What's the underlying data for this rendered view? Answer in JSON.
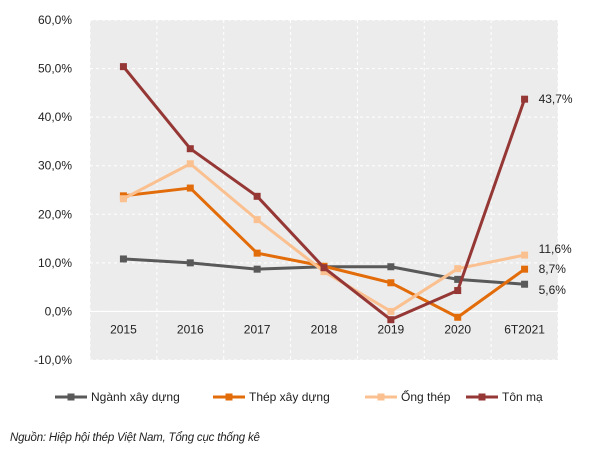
{
  "chart_data": {
    "type": "line",
    "categories": [
      "2015",
      "2016",
      "2017",
      "2018",
      "2019",
      "2020",
      "6T2021"
    ],
    "ylim": [
      -10,
      60
    ],
    "ytick_values": [
      -10,
      0,
      10,
      20,
      30,
      40,
      50,
      60
    ],
    "ytick_labels": [
      "-10,0%",
      "0,0%",
      "10,0%",
      "20,0%",
      "30,0%",
      "40,0%",
      "50,0%",
      "60,0%"
    ],
    "grid": true,
    "legend_position": "bottom",
    "series": [
      {
        "name": "Ngành xây dựng",
        "color": "#595959",
        "values": [
          10.8,
          10.0,
          8.7,
          9.2,
          9.2,
          6.6,
          5.6
        ],
        "end_label": "5,6%"
      },
      {
        "name": "Thép xây dựng",
        "color": "#e36c0a",
        "values": [
          23.8,
          25.4,
          12.0,
          9.3,
          5.9,
          -1.2,
          8.7
        ],
        "end_label": "8,7%"
      },
      {
        "name": "Ống thép",
        "color": "#fac090",
        "values": [
          23.2,
          30.4,
          18.9,
          8.2,
          0.0,
          8.8,
          11.6
        ],
        "end_label": "11,6%"
      },
      {
        "name": "Tôn mạ",
        "color": "#953735",
        "values": [
          50.4,
          33.5,
          23.7,
          9.0,
          -1.7,
          4.3,
          43.7
        ],
        "end_label": "43,7%"
      }
    ]
  },
  "source": "Nguồn: Hiệp hội thép Việt Nam, Tổng cục thống kê"
}
